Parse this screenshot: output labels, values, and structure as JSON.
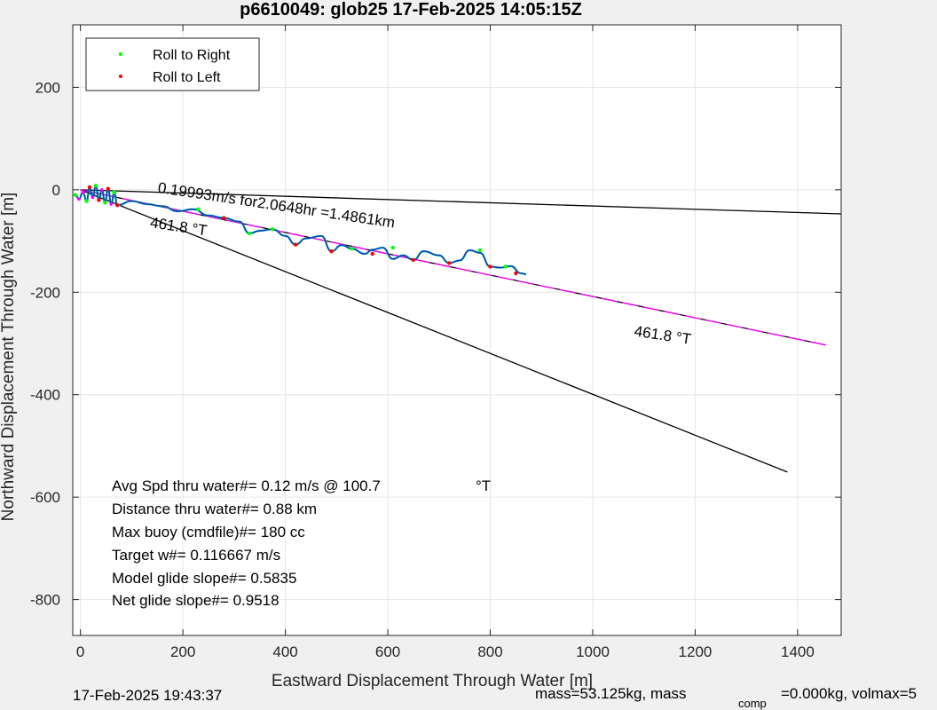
{
  "chart_data": {
    "type": "line",
    "title": "p6610049: glob25 17-Feb-2025 14:05:15Z",
    "xlabel": "Eastward Displacement Through Water [m]",
    "ylabel": "Northward Displacement Through Water [m]",
    "xlim": [
      -15,
      1485
    ],
    "ylim": [
      -870,
      322
    ],
    "xticks": [
      0,
      200,
      400,
      600,
      800,
      1000,
      1200,
      1400
    ],
    "yticks": [
      200,
      0,
      -200,
      -400,
      -600,
      -800
    ],
    "grid": true,
    "legend": {
      "placement": "top-left",
      "entries": [
        {
          "label": "Roll to Right",
          "color": "#00ff00"
        },
        {
          "label": "Roll to Left",
          "color": "#ff0000"
        }
      ]
    },
    "reference_lines": [
      {
        "x": [
          0,
          1485
        ],
        "y": [
          0,
          -47
        ],
        "color": "#000000"
      },
      {
        "x": [
          0,
          1380
        ],
        "y": [
          0,
          -551
        ],
        "color": "#000000"
      },
      {
        "x": [
          0,
          1455
        ],
        "y": [
          0,
          -303
        ],
        "color": "#000000"
      },
      {
        "x": [
          0,
          1455
        ],
        "y": [
          0,
          -303
        ],
        "color": "#ff00ff",
        "dashed": true
      }
    ],
    "track": {
      "x": [
        -10,
        -3,
        5,
        12,
        18,
        24,
        30,
        36,
        42,
        48,
        54,
        60,
        66,
        72,
        100,
        130,
        160,
        190,
        220,
        250,
        280,
        310,
        330,
        350,
        375,
        400,
        420,
        440,
        470,
        490,
        510,
        530,
        555,
        570,
        590,
        610,
        630,
        650,
        670,
        700,
        720,
        740,
        760,
        780,
        800,
        820,
        840,
        860,
        870
      ],
      "y": [
        -10,
        -18,
        -5,
        -22,
        5,
        -15,
        8,
        -20,
        0,
        -25,
        2,
        -28,
        -5,
        -30,
        -22,
        -28,
        -32,
        -42,
        -38,
        -50,
        -55,
        -62,
        -85,
        -80,
        -77,
        -90,
        -107,
        -95,
        -90,
        -120,
        -108,
        -115,
        -125,
        -117,
        -113,
        -135,
        -128,
        -137,
        -120,
        -128,
        -143,
        -138,
        -118,
        -123,
        -150,
        -152,
        -149,
        -163,
        -165
      ]
    },
    "roll_right": {
      "x": [
        -10,
        12,
        30,
        48,
        66,
        230,
        330,
        375,
        420,
        530,
        610,
        780,
        830
      ],
      "y": [
        -10,
        -22,
        8,
        -25,
        -5,
        -38,
        -85,
        -77,
        -107,
        -115,
        -113,
        -118,
        -150
      ]
    },
    "roll_left": {
      "x": [
        18,
        36,
        54,
        72,
        280,
        420,
        490,
        570,
        650,
        720,
        800,
        850
      ],
      "y": [
        5,
        -20,
        2,
        -30,
        -55,
        -107,
        -120,
        -125,
        -137,
        -143,
        -150,
        -163
      ]
    },
    "annotations": [
      {
        "text": "0.19993m/s for2.0648hr =1.4861km",
        "x": 150,
        "y": -5,
        "angle": 8.5
      },
      {
        "text": "461.8  °T",
        "x": 135,
        "y": -73,
        "angle": 8.5
      },
      {
        "text": "461.8  °T",
        "x": 1080,
        "y": -285,
        "angle": 8.5
      }
    ],
    "stats": [
      {
        "text": "Avg Spd thru water#=  0.12 m/s @ 100.7",
        "unit": "°T"
      },
      {
        "text": "Distance thru water#=  0.88 km"
      },
      {
        "text": "Max buoy (cmdfile)#= 180 cc"
      },
      {
        "text": "Target w#= 0.116667 m/s"
      },
      {
        "text": "Model glide slope#= 0.5835"
      },
      {
        "text": "Net glide slope#= 0.9518"
      }
    ]
  },
  "footer": {
    "left": "17-Feb-2025 19:43:37",
    "right_main": "mass=53.125kg, mass",
    "right_sub": "comp",
    "right_tail": "=0.000kg, volmax=5"
  }
}
